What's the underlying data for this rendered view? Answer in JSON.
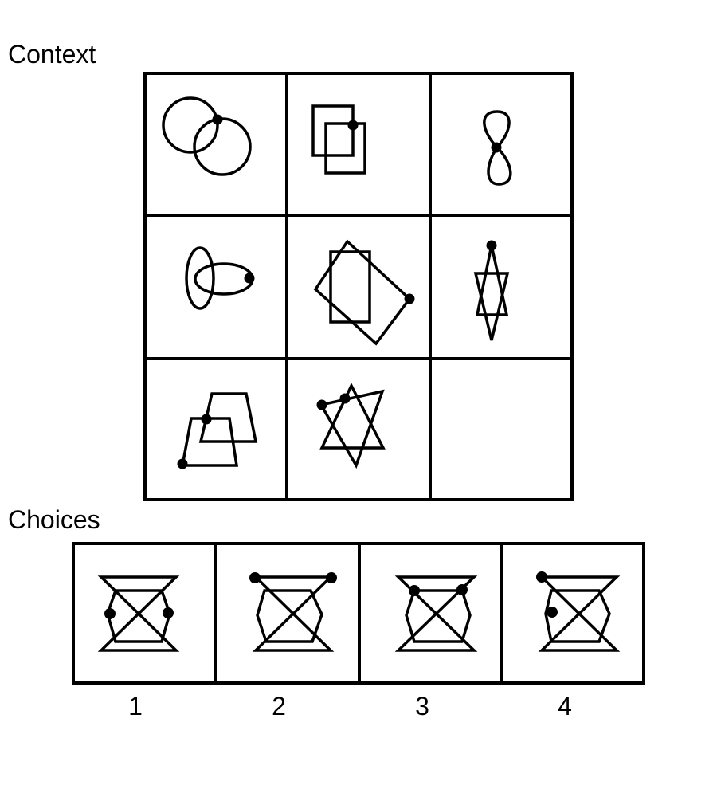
{
  "context": {
    "title": "Context",
    "cells": [
      {
        "id": "r1c1",
        "shape": "two-overlapping-circles",
        "dots": 1
      },
      {
        "id": "r1c2",
        "shape": "two-overlapping-squares",
        "dots": 1
      },
      {
        "id": "r1c3",
        "shape": "figure-eight-loops",
        "dots": 1
      },
      {
        "id": "r2c1",
        "shape": "two-overlapping-ellipses",
        "dots": 1
      },
      {
        "id": "r2c2",
        "shape": "rectangle-and-rotated-rectangle",
        "dots": 1
      },
      {
        "id": "r2c3",
        "shape": "two-tall-triangles",
        "dots": 1
      },
      {
        "id": "r3c1",
        "shape": "two-overlapping-trapezoids",
        "dots": 2
      },
      {
        "id": "r3c2",
        "shape": "two-overlapping-triangles",
        "dots": 2
      },
      {
        "id": "r3c3",
        "shape": "empty",
        "dots": 0
      }
    ]
  },
  "choices": {
    "title": "Choices",
    "labels": [
      "1",
      "2",
      "3",
      "4"
    ],
    "items": [
      {
        "label": "1",
        "shape": "hourglass-and-hexagon",
        "dots": 2
      },
      {
        "label": "2",
        "shape": "hourglass-and-hexagon",
        "dots": 2
      },
      {
        "label": "3",
        "shape": "hourglass-and-hexagon",
        "dots": 2
      },
      {
        "label": "4",
        "shape": "hourglass-and-hexagon",
        "dots": 2
      }
    ]
  }
}
